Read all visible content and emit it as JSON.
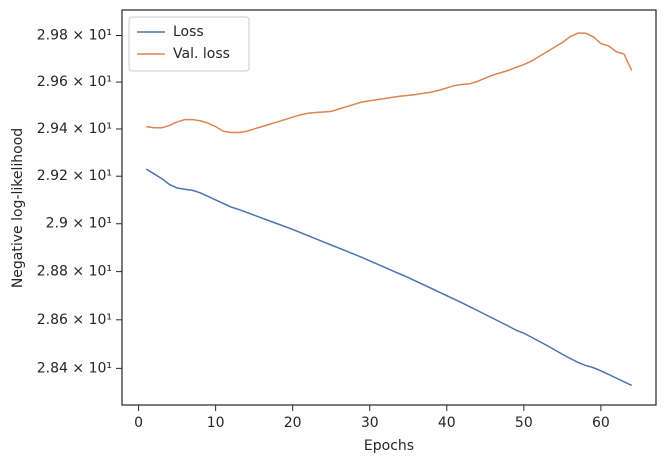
{
  "chart_data": {
    "type": "line",
    "xlabel": "Epochs",
    "ylabel": "Negative log-likelihood",
    "x": [
      1,
      2,
      3,
      4,
      5,
      6,
      7,
      8,
      9,
      10,
      11,
      12,
      13,
      14,
      15,
      16,
      17,
      18,
      19,
      20,
      21,
      22,
      23,
      24,
      25,
      26,
      27,
      28,
      29,
      30,
      31,
      32,
      33,
      34,
      35,
      36,
      37,
      38,
      39,
      40,
      41,
      42,
      43,
      44,
      45,
      46,
      47,
      48,
      49,
      50,
      51,
      52,
      53,
      54,
      55,
      56,
      57,
      58,
      59,
      60,
      61,
      62,
      63,
      64
    ],
    "series": [
      {
        "name": "Loss",
        "color": "#4c72b0",
        "values": [
          29.23,
          29.21,
          29.19,
          29.165,
          29.15,
          29.145,
          29.14,
          29.13,
          29.115,
          29.1,
          29.085,
          29.07,
          29.06,
          29.048,
          29.036,
          29.024,
          29.012,
          29.0,
          28.988,
          28.976,
          28.963,
          28.95,
          28.937,
          28.924,
          28.911,
          28.898,
          28.885,
          28.872,
          28.859,
          28.845,
          28.831,
          28.817,
          28.803,
          28.789,
          28.775,
          28.76,
          28.745,
          28.73,
          28.715,
          28.7,
          28.685,
          28.67,
          28.654,
          28.638,
          28.622,
          28.606,
          28.59,
          28.574,
          28.557,
          28.545,
          28.528,
          28.511,
          28.494,
          28.476,
          28.458,
          28.441,
          28.425,
          28.412,
          28.403,
          28.39,
          28.375,
          28.36,
          28.345,
          28.33
        ]
      },
      {
        "name": "Val. loss",
        "color": "#dd8452",
        "values": [
          29.41,
          29.405,
          29.405,
          29.415,
          29.43,
          29.44,
          29.44,
          29.435,
          29.425,
          29.41,
          29.39,
          29.385,
          29.385,
          29.39,
          29.4,
          29.41,
          29.42,
          29.43,
          29.44,
          29.45,
          29.46,
          29.467,
          29.47,
          29.472,
          29.475,
          29.485,
          29.495,
          29.505,
          29.515,
          29.52,
          29.525,
          29.53,
          29.535,
          29.54,
          29.543,
          29.547,
          29.552,
          29.557,
          29.565,
          29.575,
          29.585,
          29.59,
          29.593,
          29.603,
          29.617,
          29.63,
          29.64,
          29.65,
          29.663,
          29.675,
          29.69,
          29.71,
          29.73,
          29.75,
          29.77,
          29.795,
          29.81,
          29.81,
          29.795,
          29.765,
          29.755,
          29.73,
          29.72,
          29.65
        ]
      }
    ],
    "xlim": [
      -2.15,
      67.15
    ],
    "xticks": [
      0,
      10,
      20,
      30,
      40,
      50,
      60
    ],
    "ylim": [
      28.25,
      29.91
    ],
    "log_y": true,
    "yticks": [
      {
        "value": 28.4,
        "label": "2.84 × 10¹"
      },
      {
        "value": 28.6,
        "label": "2.86 × 10¹"
      },
      {
        "value": 28.8,
        "label": "2.88 × 10¹"
      },
      {
        "value": 29.0,
        "label": "2.9 × 10¹"
      },
      {
        "value": 29.2,
        "label": "2.92 × 10¹"
      },
      {
        "value": 29.4,
        "label": "2.94 × 10¹"
      },
      {
        "value": 29.6,
        "label": "2.96 × 10¹"
      },
      {
        "value": 29.8,
        "label": "2.98 × 10¹"
      }
    ],
    "legend": "upper left",
    "grid": false
  }
}
